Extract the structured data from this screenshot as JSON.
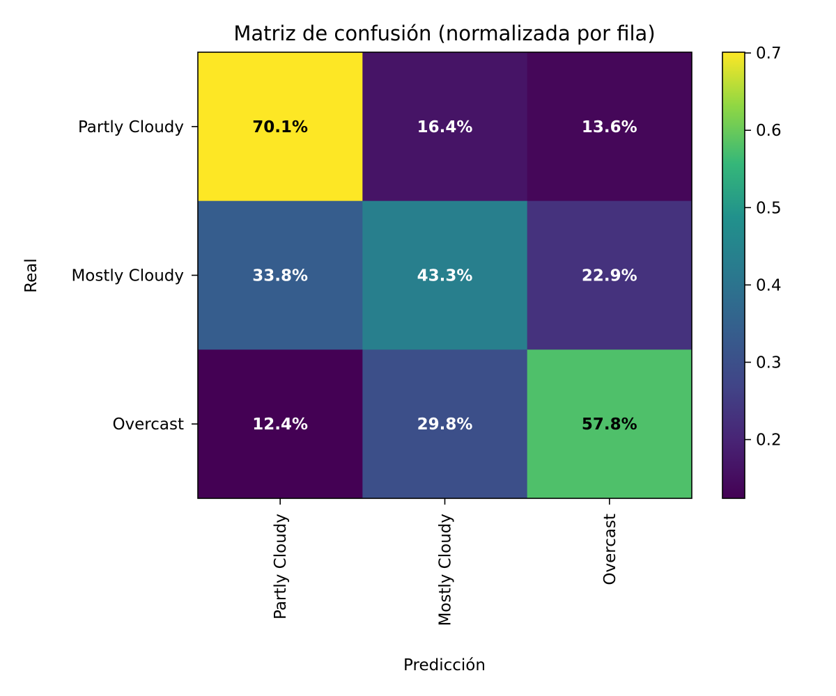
{
  "chart_data": {
    "type": "heatmap",
    "title": "Matriz de confusión (normalizada por fila)",
    "xlabel": "Predicción",
    "ylabel": "Real",
    "x_categories": [
      "Partly Cloudy",
      "Mostly Cloudy",
      "Overcast"
    ],
    "y_categories": [
      "Partly Cloudy",
      "Mostly Cloudy",
      "Overcast"
    ],
    "values": [
      [
        0.701,
        0.164,
        0.136
      ],
      [
        0.338,
        0.433,
        0.229
      ],
      [
        0.124,
        0.298,
        0.578
      ]
    ],
    "cell_labels": [
      [
        "70.1%",
        "16.4%",
        "13.6%"
      ],
      [
        "33.8%",
        "43.3%",
        "22.9%"
      ],
      [
        "12.4%",
        "29.8%",
        "57.8%"
      ]
    ],
    "colormap": "viridis",
    "color_range": [
      0.124,
      0.701
    ],
    "colorbar_ticks": [
      0.2,
      0.3,
      0.4,
      0.5,
      0.6,
      0.7
    ],
    "colorbar_tick_labels": [
      "0.2",
      "0.3",
      "0.4",
      "0.5",
      "0.6",
      "0.7"
    ]
  }
}
